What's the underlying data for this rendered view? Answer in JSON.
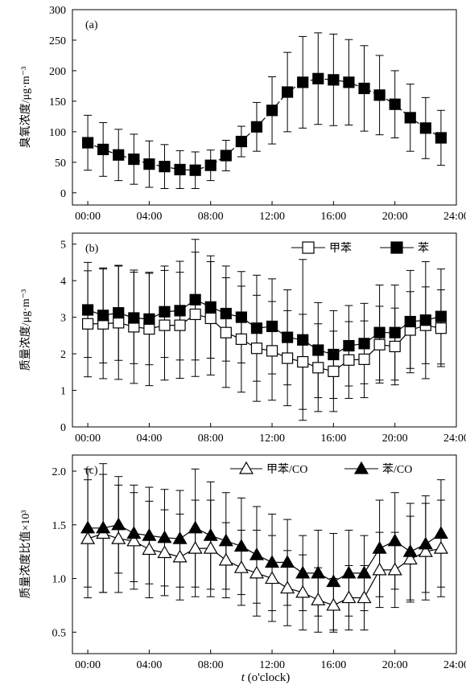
{
  "x_axis_label": {
    "italic": "t",
    "rest": " (o'clock)"
  },
  "chart_data": [
    {
      "type": "line",
      "panel_label": "(a)",
      "ylabel": "臭氧浓度/μg·m⁻³",
      "ylim": [
        -20,
        300
      ],
      "yticks": [
        0,
        50,
        100,
        150,
        200,
        250,
        300
      ],
      "xlim": [
        -1,
        24
      ],
      "xticks": [
        0,
        4,
        8,
        12,
        16,
        20,
        24
      ],
      "xticklabels": [
        "00:00",
        "04:00",
        "08:00",
        "12:00",
        "16:00",
        "20:00",
        "24:00"
      ],
      "x": [
        0,
        1,
        2,
        3,
        4,
        5,
        6,
        7,
        8,
        9,
        10,
        11,
        12,
        13,
        14,
        15,
        16,
        17,
        18,
        19,
        20,
        21,
        22,
        23
      ],
      "series": [
        {
          "name": "",
          "marker": "square",
          "filled": true,
          "dashed": true,
          "values": [
            82,
            71,
            62,
            55,
            47,
            43,
            38,
            37,
            45,
            61,
            84,
            108,
            135,
            165,
            181,
            187,
            185,
            181,
            171,
            160,
            145,
            123,
            106,
            90
          ],
          "err": [
            45,
            44,
            42,
            41,
            38,
            36,
            31,
            30,
            25,
            25,
            25,
            40,
            55,
            65,
            75,
            75,
            75,
            70,
            70,
            65,
            55,
            55,
            50,
            45
          ]
        }
      ]
    },
    {
      "type": "line",
      "panel_label": "(b)",
      "ylabel": "质量浓度/μg·m⁻³",
      "ylim": [
        0,
        5.3
      ],
      "yticks": [
        0,
        1,
        2,
        3,
        4,
        5
      ],
      "xlim": [
        -1,
        24
      ],
      "xticks": [
        0,
        4,
        8,
        12,
        16,
        20,
        24
      ],
      "xticklabels": [
        "00:00",
        "04:00",
        "08:00",
        "12:00",
        "16:00",
        "20:00",
        "24:00"
      ],
      "x": [
        0,
        1,
        2,
        3,
        4,
        5,
        6,
        7,
        8,
        9,
        10,
        11,
        12,
        13,
        14,
        15,
        16,
        17,
        18,
        19,
        20,
        21,
        22,
        23
      ],
      "legend_position": "top-right",
      "series": [
        {
          "name": "甲苯",
          "marker": "square",
          "filled": false,
          "values": [
            2.82,
            2.82,
            2.85,
            2.74,
            2.68,
            2.78,
            2.78,
            3.08,
            2.97,
            2.58,
            2.4,
            2.15,
            2.08,
            1.88,
            1.78,
            1.62,
            1.52,
            1.83,
            1.85,
            2.25,
            2.2,
            2.65,
            2.78,
            2.7
          ],
          "err": [
            1.45,
            1.5,
            1.55,
            1.55,
            1.55,
            1.5,
            1.45,
            1.7,
            1.55,
            1.5,
            1.45,
            1.45,
            1.35,
            1.3,
            1.3,
            1.2,
            1.1,
            1.05,
            1.05,
            1.05,
            1.05,
            1.05,
            1.05,
            1.05
          ]
        },
        {
          "name": "苯",
          "marker": "square",
          "filled": true,
          "values": [
            3.2,
            3.05,
            3.12,
            2.98,
            2.95,
            3.15,
            3.18,
            3.48,
            3.28,
            3.1,
            3.0,
            2.7,
            2.75,
            2.45,
            2.38,
            2.1,
            1.98,
            2.22,
            2.28,
            2.58,
            2.58,
            2.88,
            2.92,
            3.02
          ],
          "err": [
            1.3,
            1.3,
            1.3,
            1.25,
            1.25,
            1.25,
            1.35,
            1.65,
            1.4,
            1.3,
            1.25,
            1.45,
            1.3,
            1.3,
            2.2,
            1.3,
            1.2,
            1.1,
            1.1,
            1.3,
            1.3,
            1.4,
            1.6,
            1.3
          ]
        }
      ]
    },
    {
      "type": "line",
      "panel_label": "(c)",
      "ylabel": "质量浓度比值×10³",
      "ylim": [
        0.3,
        2.15
      ],
      "yticks": [
        0.5,
        1.0,
        1.5,
        2.0
      ],
      "yticklabels": [
        "0.5",
        "1.0",
        "1.5",
        "2.0"
      ],
      "xlim": [
        -1,
        24
      ],
      "xticks": [
        0,
        4,
        8,
        12,
        16,
        20,
        24
      ],
      "xticklabels": [
        "00:00",
        "04:00",
        "08:00",
        "12:00",
        "16:00",
        "20:00",
        "24:00"
      ],
      "x": [
        0,
        1,
        2,
        3,
        4,
        5,
        6,
        7,
        8,
        9,
        10,
        11,
        12,
        13,
        14,
        15,
        16,
        17,
        18,
        19,
        20,
        21,
        22,
        23
      ],
      "legend_position": "top-right",
      "series": [
        {
          "name": "甲苯/CO",
          "marker": "triangle",
          "filled": false,
          "values": [
            1.37,
            1.42,
            1.37,
            1.35,
            1.27,
            1.24,
            1.2,
            1.28,
            1.28,
            1.17,
            1.1,
            1.05,
            1.0,
            0.91,
            0.87,
            0.8,
            0.75,
            0.82,
            0.82,
            1.08,
            1.08,
            1.18,
            1.25,
            1.28
          ],
          "err": [
            0.55,
            0.55,
            0.5,
            0.45,
            0.45,
            0.4,
            0.4,
            0.45,
            0.45,
            0.35,
            0.35,
            0.4,
            0.4,
            0.35,
            0.35,
            0.3,
            0.25,
            0.3,
            0.3,
            0.35,
            0.35,
            0.4,
            0.45,
            0.45
          ]
        },
        {
          "name": "苯/CO",
          "marker": "triangle",
          "filled": true,
          "values": [
            1.47,
            1.47,
            1.5,
            1.42,
            1.4,
            1.38,
            1.37,
            1.47,
            1.4,
            1.35,
            1.3,
            1.22,
            1.15,
            1.15,
            1.05,
            1.05,
            0.97,
            1.05,
            1.05,
            1.28,
            1.35,
            1.25,
            1.32,
            1.42
          ],
          "err": [
            0.55,
            0.6,
            0.45,
            0.45,
            0.45,
            0.45,
            0.45,
            0.55,
            0.5,
            0.45,
            0.45,
            0.45,
            0.45,
            0.4,
            0.35,
            0.4,
            0.45,
            0.4,
            0.35,
            0.45,
            0.45,
            0.45,
            0.45,
            0.5
          ]
        }
      ]
    }
  ]
}
